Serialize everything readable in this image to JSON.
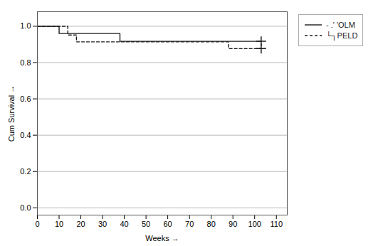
{
  "chart_data": {
    "type": "step",
    "xlabel": "Weeks",
    "ylabel": "Cum Survival",
    "xlim": [
      0,
      115
    ],
    "ylim": [
      -0.04,
      1.08
    ],
    "xticks": [
      0,
      10,
      20,
      30,
      40,
      50,
      60,
      70,
      80,
      90,
      100,
      110
    ],
    "yticks": [
      {
        "value": 0.0,
        "label": "0.0"
      },
      0.2,
      0.4,
      0.6,
      0.8,
      {
        "value": 1.0,
        "label": "1.0"
      }
    ],
    "grid": "y",
    "legend": "right",
    "series": [
      {
        "name": "- .' 'OLM",
        "color": "#1a1a1a",
        "line_style": "solid",
        "marker": "plus",
        "x": [
          0,
          10,
          10,
          38,
          38,
          85,
          85,
          103
        ],
        "values": [
          1.0,
          1.0,
          0.96,
          0.96,
          0.917,
          0.917,
          0.917,
          0.917
        ],
        "censor_x": [
          103
        ],
        "censor_values": [
          0.917
        ]
      },
      {
        "name": "└┐PELD",
        "color": "#1a1a1a",
        "line_style": "dashed",
        "marker": "plus",
        "x": [
          0,
          14,
          14,
          18,
          18,
          34,
          34,
          88,
          88,
          103
        ],
        "values": [
          1.0,
          1.0,
          0.952,
          0.952,
          0.914,
          0.914,
          0.914,
          0.877,
          0.877,
          0.877
        ],
        "censor_x": [
          103
        ],
        "censor_values": [
          0.877
        ]
      }
    ]
  }
}
